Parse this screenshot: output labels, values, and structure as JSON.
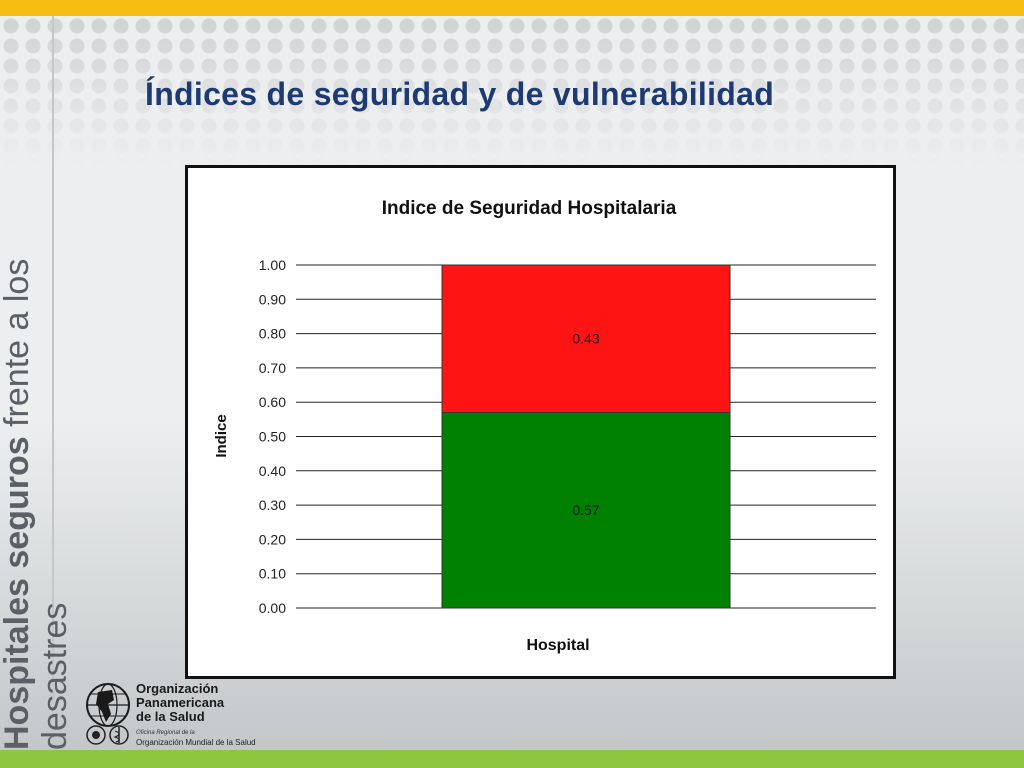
{
  "slide": {
    "title": "Índices de seguridad y de vulnerabilidad",
    "side_text": {
      "bold": "Hospitales seguros",
      "regular": "frente a los",
      "line2": "desastres"
    }
  },
  "logo": {
    "name": "Organización\nPanamericana\nde la Salud",
    "sub1": "Oficina Regional de la",
    "sub2": "Organización Mundial de la Salud"
  },
  "colors": {
    "top_bar": "#f7bd12",
    "bottom_bar": "#8dc63f",
    "title": "#1d3a73",
    "safe": "#008000",
    "vulnerable": "#ff1414"
  },
  "chart_data": {
    "type": "bar",
    "stacked": true,
    "title": "Indice de Seguridad Hospitalaria",
    "xlabel": "Hospital",
    "ylabel": "Indice",
    "categories": [
      ""
    ],
    "ylim": [
      0,
      1
    ],
    "yticks": [
      "0.00",
      "0.10",
      "0.20",
      "0.30",
      "0.40",
      "0.50",
      "0.60",
      "0.70",
      "0.80",
      "0.90",
      "1.00"
    ],
    "grid": true,
    "legend": "none",
    "series": [
      {
        "values": [
          0.57
        ],
        "label": "0.57",
        "color": "#008000"
      },
      {
        "values": [
          0.43
        ],
        "label": "0.43",
        "color": "#ff1414"
      }
    ]
  }
}
